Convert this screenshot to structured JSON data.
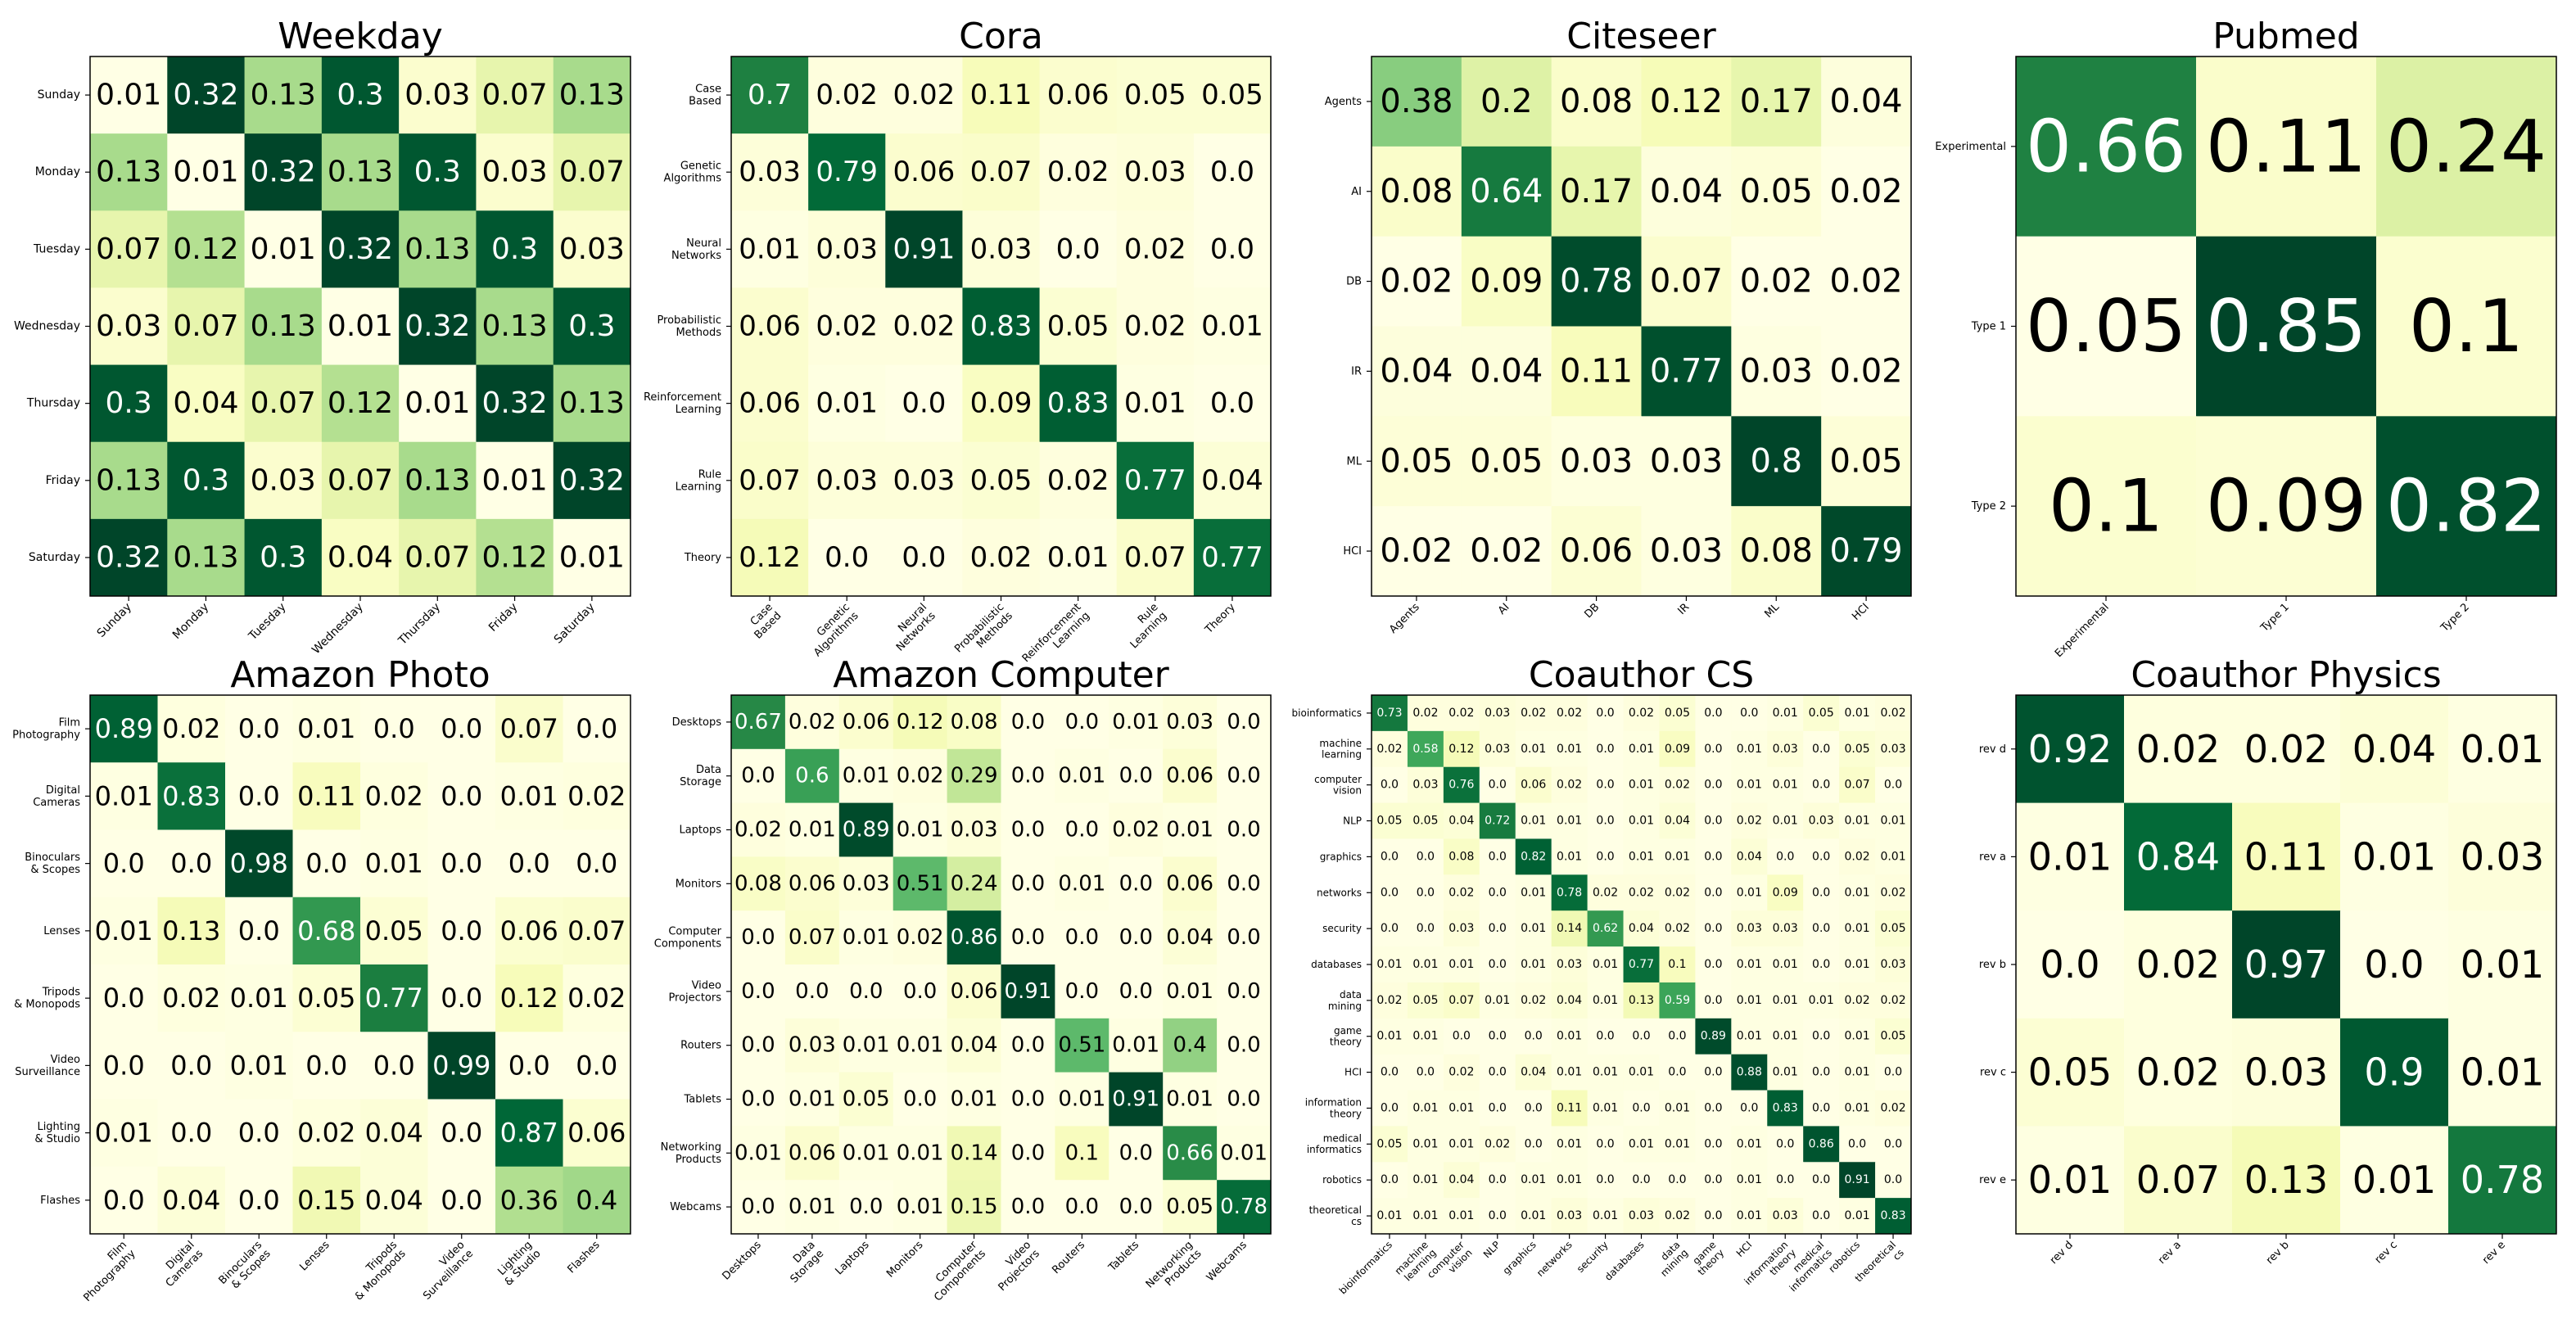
{
  "colormap": {
    "name": "YlGn",
    "low": "#ffffe5",
    "high": "#004529"
  },
  "chart_data": [
    {
      "type": "heatmap",
      "title": "Weekday",
      "labels": [
        "Sunday",
        "Monday",
        "Tuesday",
        "Wednesday",
        "Thursday",
        "Friday",
        "Saturday"
      ],
      "x_labels": [
        "Sunday",
        "Monday",
        "Tuesday",
        "Wednesday",
        "Thursday",
        "Friday",
        "Saturday"
      ],
      "matrix": [
        [
          0.01,
          0.32,
          0.13,
          0.3,
          0.03,
          0.07,
          0.13
        ],
        [
          0.13,
          0.01,
          0.32,
          0.13,
          0.3,
          0.03,
          0.07
        ],
        [
          0.07,
          0.12,
          0.01,
          0.32,
          0.13,
          0.3,
          0.03
        ],
        [
          0.03,
          0.07,
          0.13,
          0.01,
          0.32,
          0.13,
          0.3
        ],
        [
          0.3,
          0.04,
          0.07,
          0.12,
          0.01,
          0.32,
          0.13
        ],
        [
          0.13,
          0.3,
          0.03,
          0.07,
          0.13,
          0.01,
          0.32
        ],
        [
          0.32,
          0.13,
          0.3,
          0.04,
          0.07,
          0.12,
          0.01
        ]
      ]
    },
    {
      "type": "heatmap",
      "title": "Cora",
      "labels": [
        "Case\nBased",
        "Genetic\nAlgorithms",
        "Neural\nNetworks",
        "Probabilistic\nMethods",
        "Reinforcement\nLearning",
        "Rule\nLearning",
        "Theory"
      ],
      "matrix": [
        [
          0.7,
          0.02,
          0.02,
          0.11,
          0.06,
          0.05,
          0.05
        ],
        [
          0.03,
          0.79,
          0.06,
          0.07,
          0.02,
          0.03,
          0.0
        ],
        [
          0.01,
          0.03,
          0.91,
          0.03,
          0.0,
          0.02,
          0.0
        ],
        [
          0.06,
          0.02,
          0.02,
          0.83,
          0.05,
          0.02,
          0.01
        ],
        [
          0.06,
          0.01,
          0.0,
          0.09,
          0.83,
          0.01,
          0.0
        ],
        [
          0.07,
          0.03,
          0.03,
          0.05,
          0.02,
          0.77,
          0.04
        ],
        [
          0.12,
          0.0,
          0.0,
          0.02,
          0.01,
          0.07,
          0.77
        ]
      ]
    },
    {
      "type": "heatmap",
      "title": "Citeseer",
      "labels": [
        "Agents",
        "AI",
        "DB",
        "IR",
        "ML",
        "HCI"
      ],
      "matrix": [
        [
          0.38,
          0.2,
          0.08,
          0.12,
          0.17,
          0.04
        ],
        [
          0.08,
          0.64,
          0.17,
          0.04,
          0.05,
          0.02
        ],
        [
          0.02,
          0.09,
          0.78,
          0.07,
          0.02,
          0.02
        ],
        [
          0.04,
          0.04,
          0.11,
          0.77,
          0.03,
          0.02
        ],
        [
          0.05,
          0.05,
          0.03,
          0.03,
          0.8,
          0.05
        ],
        [
          0.02,
          0.02,
          0.06,
          0.03,
          0.08,
          0.79
        ]
      ]
    },
    {
      "type": "heatmap",
      "title": "Pubmed",
      "labels": [
        "Experimental",
        "Type 1",
        "Type 2"
      ],
      "matrix": [
        [
          0.66,
          0.11,
          0.24
        ],
        [
          0.05,
          0.85,
          0.1
        ],
        [
          0.1,
          0.09,
          0.82
        ]
      ]
    },
    {
      "type": "heatmap",
      "title": "Amazon Photo",
      "labels": [
        "Film\nPhotography",
        "Digital\nCameras",
        "Binoculars\n& Scopes",
        "Lenses",
        "Tripods\n& Monopods",
        "Video\nSurveillance",
        "Lighting\n& Studio",
        "Flashes"
      ],
      "matrix": [
        [
          0.89,
          0.02,
          0.0,
          0.01,
          0.0,
          0.0,
          0.07,
          0.0
        ],
        [
          0.01,
          0.83,
          0.0,
          0.11,
          0.02,
          0.0,
          0.01,
          0.02
        ],
        [
          0.0,
          0.0,
          0.98,
          0.0,
          0.01,
          0.0,
          0.0,
          0.0
        ],
        [
          0.01,
          0.13,
          0.0,
          0.68,
          0.05,
          0.0,
          0.06,
          0.07
        ],
        [
          0.0,
          0.02,
          0.01,
          0.05,
          0.77,
          0.0,
          0.12,
          0.02
        ],
        [
          0.0,
          0.0,
          0.01,
          0.0,
          0.0,
          0.99,
          0.0,
          0.0
        ],
        [
          0.01,
          0.0,
          0.0,
          0.02,
          0.04,
          0.0,
          0.87,
          0.06
        ],
        [
          0.0,
          0.04,
          0.0,
          0.15,
          0.04,
          0.0,
          0.36,
          0.4
        ]
      ]
    },
    {
      "type": "heatmap",
      "title": "Amazon Computer",
      "labels": [
        "Desktops",
        "Data\nStorage",
        "Laptops",
        "Monitors",
        "Computer\nComponents",
        "Video\nProjectors",
        "Routers",
        "Tablets",
        "Networking\nProducts",
        "Webcams"
      ],
      "matrix": [
        [
          0.67,
          0.02,
          0.06,
          0.12,
          0.08,
          0.0,
          0.0,
          0.01,
          0.03,
          0.0
        ],
        [
          0.0,
          0.6,
          0.01,
          0.02,
          0.29,
          0.0,
          0.01,
          0.0,
          0.06,
          0.0
        ],
        [
          0.02,
          0.01,
          0.89,
          0.01,
          0.03,
          0.0,
          0.0,
          0.02,
          0.01,
          0.0
        ],
        [
          0.08,
          0.06,
          0.03,
          0.51,
          0.24,
          0.0,
          0.01,
          0.0,
          0.06,
          0.0
        ],
        [
          0.0,
          0.07,
          0.01,
          0.02,
          0.86,
          0.0,
          0.0,
          0.0,
          0.04,
          0.0
        ],
        [
          0.0,
          0.0,
          0.0,
          0.0,
          0.06,
          0.91,
          0.0,
          0.0,
          0.01,
          0.0
        ],
        [
          0.0,
          0.03,
          0.01,
          0.01,
          0.04,
          0.0,
          0.51,
          0.01,
          0.4,
          0.0
        ],
        [
          0.0,
          0.01,
          0.05,
          0.0,
          0.01,
          0.0,
          0.01,
          0.91,
          0.01,
          0.0
        ],
        [
          0.01,
          0.06,
          0.01,
          0.01,
          0.14,
          0.0,
          0.1,
          0.0,
          0.66,
          0.01
        ],
        [
          0.0,
          0.01,
          0.0,
          0.01,
          0.15,
          0.0,
          0.0,
          0.0,
          0.05,
          0.78
        ]
      ]
    },
    {
      "type": "heatmap",
      "title": "Coauthor CS",
      "labels": [
        "bioinformatics",
        "machine\nlearning",
        "computer\nvision",
        "NLP",
        "graphics",
        "networks",
        "security",
        "databases",
        "data\nmining",
        "game\ntheory",
        "HCI",
        "information\ntheory",
        "medical\ninformatics",
        "robotics",
        "theoretical\ncs"
      ],
      "matrix": [
        [
          0.73,
          0.02,
          0.02,
          0.03,
          0.02,
          0.02,
          0.0,
          0.02,
          0.05,
          0.0,
          0.0,
          0.01,
          0.05,
          0.01,
          0.02
        ],
        [
          0.02,
          0.58,
          0.12,
          0.03,
          0.01,
          0.01,
          0.0,
          0.01,
          0.09,
          0.0,
          0.01,
          0.03,
          0.0,
          0.05,
          0.03
        ],
        [
          0.0,
          0.03,
          0.76,
          0.0,
          0.06,
          0.02,
          0.0,
          0.01,
          0.02,
          0.0,
          0.01,
          0.01,
          0.0,
          0.07,
          0.0
        ],
        [
          0.05,
          0.05,
          0.04,
          0.72,
          0.01,
          0.01,
          0.0,
          0.01,
          0.04,
          0.0,
          0.02,
          0.01,
          0.03,
          0.01,
          0.01
        ],
        [
          0.0,
          0.0,
          0.08,
          0.0,
          0.82,
          0.01,
          0.0,
          0.01,
          0.01,
          0.0,
          0.04,
          0.0,
          0.0,
          0.02,
          0.01
        ],
        [
          0.0,
          0.0,
          0.02,
          0.0,
          0.01,
          0.78,
          0.02,
          0.02,
          0.02,
          0.0,
          0.01,
          0.09,
          0.0,
          0.01,
          0.02
        ],
        [
          0.0,
          0.0,
          0.03,
          0.0,
          0.01,
          0.14,
          0.62,
          0.04,
          0.02,
          0.0,
          0.03,
          0.03,
          0.0,
          0.01,
          0.05
        ],
        [
          0.01,
          0.01,
          0.01,
          0.0,
          0.01,
          0.03,
          0.01,
          0.77,
          0.1,
          0.0,
          0.01,
          0.01,
          0.0,
          0.01,
          0.03
        ],
        [
          0.02,
          0.05,
          0.07,
          0.01,
          0.02,
          0.04,
          0.01,
          0.13,
          0.59,
          0.0,
          0.01,
          0.01,
          0.01,
          0.02,
          0.02
        ],
        [
          0.01,
          0.01,
          0.0,
          0.0,
          0.0,
          0.01,
          0.0,
          0.0,
          0.0,
          0.89,
          0.01,
          0.01,
          0.0,
          0.01,
          0.05
        ],
        [
          0.0,
          0.0,
          0.02,
          0.0,
          0.04,
          0.01,
          0.01,
          0.01,
          0.0,
          0.0,
          0.88,
          0.01,
          0.0,
          0.01,
          0.0
        ],
        [
          0.0,
          0.01,
          0.01,
          0.0,
          0.0,
          0.11,
          0.01,
          0.0,
          0.01,
          0.0,
          0.0,
          0.83,
          0.0,
          0.01,
          0.02
        ],
        [
          0.05,
          0.01,
          0.01,
          0.02,
          0.0,
          0.01,
          0.0,
          0.01,
          0.01,
          0.0,
          0.01,
          0.0,
          0.86,
          0.0,
          0.0
        ],
        [
          0.0,
          0.01,
          0.04,
          0.0,
          0.01,
          0.01,
          0.0,
          0.0,
          0.0,
          0.0,
          0.01,
          0.0,
          0.0,
          0.91,
          0.0
        ],
        [
          0.01,
          0.01,
          0.01,
          0.0,
          0.01,
          0.03,
          0.01,
          0.03,
          0.02,
          0.0,
          0.01,
          0.03,
          0.0,
          0.01,
          0.83
        ]
      ]
    },
    {
      "type": "heatmap",
      "title": "Coauthor Physics",
      "labels": [
        "rev d",
        "rev a",
        "rev b",
        "rev c",
        "rev e"
      ],
      "matrix": [
        [
          0.92,
          0.02,
          0.02,
          0.04,
          0.01
        ],
        [
          0.01,
          0.84,
          0.11,
          0.01,
          0.03
        ],
        [
          0.0,
          0.02,
          0.97,
          0.0,
          0.01
        ],
        [
          0.05,
          0.02,
          0.03,
          0.9,
          0.01
        ],
        [
          0.01,
          0.07,
          0.13,
          0.01,
          0.78
        ]
      ]
    }
  ]
}
